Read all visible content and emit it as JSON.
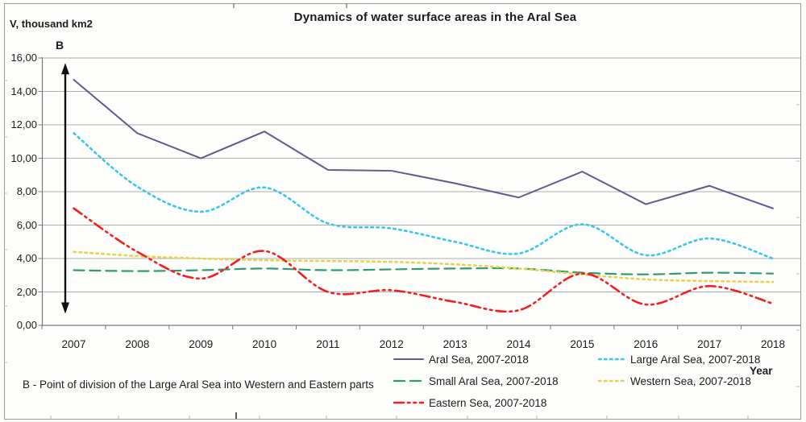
{
  "title": "Dynamics of water surface areas in the Aral Sea",
  "y_axis_label": "V, thousand km2",
  "x_axis_label": "Year",
  "point_b_label": "B",
  "footnote": "B - Point of division of the Large Aral Sea into Western and Eastern parts",
  "colors": {
    "aral_sea": "#5d5d8f",
    "large_aral_sea": "#38c6ee",
    "small_aral_sea": "#2e9b72",
    "western_sea": "#e6d24d",
    "eastern_sea": "#ee2020",
    "grid": "#adadad",
    "axis": "#7a7a7a",
    "frame": "#9b9b9b",
    "text": "#1c1c1c"
  },
  "chart_data": {
    "type": "line",
    "x": [
      2007,
      2008,
      2009,
      2010,
      2011,
      2012,
      2013,
      2014,
      2015,
      2016,
      2017,
      2018
    ],
    "x_tick_labels": [
      "2007",
      "2008",
      "2009",
      "2010",
      "2011",
      "2012",
      "2013",
      "2014",
      "2015",
      "2016",
      "2017",
      "2018"
    ],
    "y_tick_labels": [
      "0,00",
      "2,00",
      "4,00",
      "6,00",
      "8,00",
      "10,00",
      "12,00",
      "14,00",
      "16,00"
    ],
    "ylim": [
      0,
      16
    ],
    "y_tick_step": 2,
    "grid": true,
    "legend_position": "bottom",
    "series": [
      {
        "name": "Aral Sea, 2007-2018",
        "color": "#5d5d8f",
        "dash": "solid",
        "smooth": false,
        "values": [
          14.7,
          11.5,
          10.0,
          11.6,
          9.3,
          9.25,
          8.5,
          7.65,
          9.2,
          7.25,
          8.35,
          7.0
        ]
      },
      {
        "name": "Large Aral Sea, 2007-2018",
        "color": "#38c6ee",
        "dash": "dotted",
        "smooth": true,
        "values": [
          11.5,
          8.3,
          6.8,
          8.25,
          6.1,
          5.8,
          5.0,
          4.3,
          6.05,
          4.2,
          5.2,
          4.0
        ]
      },
      {
        "name": "Small Aral Sea, 2007-2018",
        "color": "#2e9b72",
        "dash": "dashed",
        "smooth": true,
        "values": [
          3.3,
          3.25,
          3.3,
          3.4,
          3.3,
          3.35,
          3.4,
          3.4,
          3.15,
          3.05,
          3.15,
          3.1
        ]
      },
      {
        "name": "Western Sea, 2007-2018",
        "color": "#e6d24d",
        "dash": "dotted",
        "smooth": true,
        "values": [
          4.4,
          4.15,
          4.0,
          3.9,
          3.85,
          3.8,
          3.65,
          3.4,
          3.05,
          2.75,
          2.65,
          2.6
        ]
      },
      {
        "name": "Eastern Sea, 2007-2018",
        "color": "#ee2020",
        "dash": "dash-dot-dot",
        "smooth": true,
        "values": [
          7.0,
          4.4,
          2.8,
          4.45,
          2.0,
          2.1,
          1.4,
          0.9,
          3.1,
          1.25,
          2.35,
          1.3
        ]
      }
    ],
    "annotation_arrow": {
      "label": "B",
      "at_x": 2007,
      "from_value": 15.7,
      "to_value": 0.7
    }
  },
  "legend": {
    "columns": [
      [
        0,
        2,
        4
      ],
      [
        1,
        3
      ]
    ]
  }
}
